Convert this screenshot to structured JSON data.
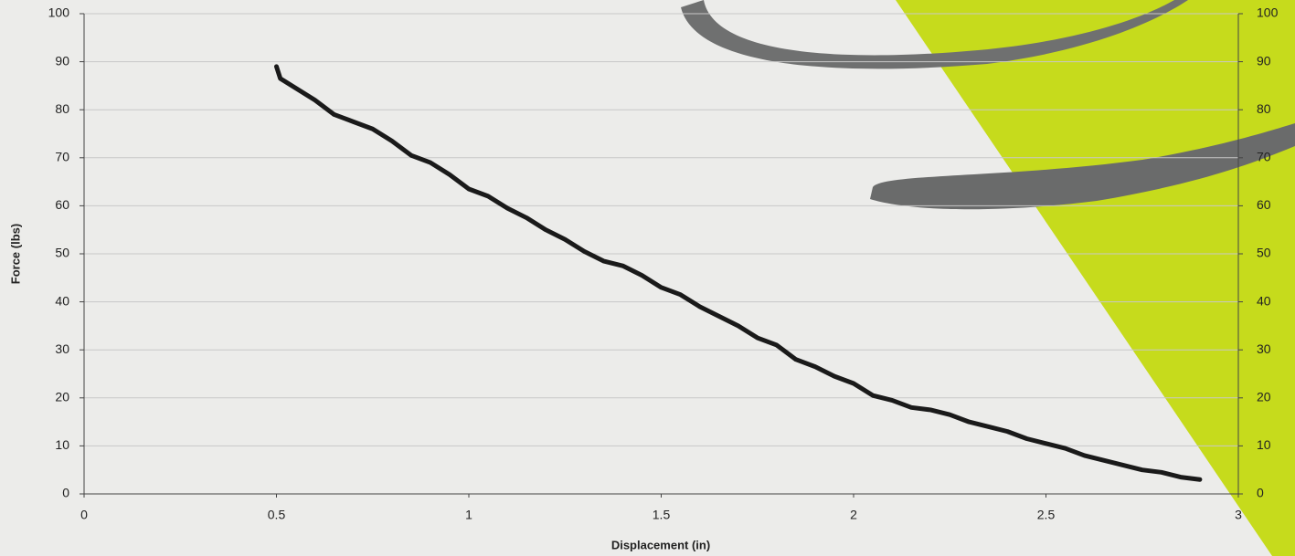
{
  "chart_data": {
    "type": "line",
    "xlabel": "Displacement (in)",
    "ylabel": "Force (lbs)",
    "x": [
      0.5,
      0.51,
      0.55,
      0.6,
      0.65,
      0.7,
      0.75,
      0.8,
      0.85,
      0.9,
      0.95,
      1.0,
      1.05,
      1.1,
      1.15,
      1.2,
      1.25,
      1.3,
      1.35,
      1.4,
      1.45,
      1.5,
      1.55,
      1.6,
      1.65,
      1.7,
      1.75,
      1.8,
      1.85,
      1.9,
      1.95,
      2.0,
      2.05,
      2.1,
      2.15,
      2.2,
      2.25,
      2.3,
      2.35,
      2.4,
      2.45,
      2.5,
      2.55,
      2.6,
      2.65,
      2.7,
      2.75,
      2.8,
      2.85,
      2.9
    ],
    "series": [
      {
        "color": "#1a1a1a",
        "values": [
          89,
          86.5,
          84.5,
          82,
          79,
          77.5,
          76,
          73.5,
          70.5,
          69,
          66.5,
          63.5,
          62,
          59.5,
          57.5,
          55,
          53,
          50.5,
          48.5,
          47.5,
          45.5,
          43,
          41.5,
          39,
          37,
          35,
          32.5,
          31,
          28,
          26.5,
          24.5,
          23,
          20.5,
          19.5,
          18,
          17.5,
          16.5,
          15,
          14,
          13,
          11.5,
          10.5,
          9.5,
          8,
          7,
          6,
          5,
          4.5,
          3.5,
          3
        ]
      }
    ],
    "xlim": [
      0,
      3
    ],
    "xticks": [
      0,
      0.5,
      1,
      1.5,
      2,
      2.5,
      3
    ],
    "ylim": [
      0,
      100
    ],
    "yticks": [
      0,
      10,
      20,
      30,
      40,
      50,
      60,
      70,
      80,
      90,
      100
    ],
    "y2lim": [
      0,
      100
    ],
    "y2ticks": [
      0,
      10,
      20,
      30,
      40,
      50,
      60,
      70,
      80,
      90,
      100
    ],
    "grid": true
  }
}
